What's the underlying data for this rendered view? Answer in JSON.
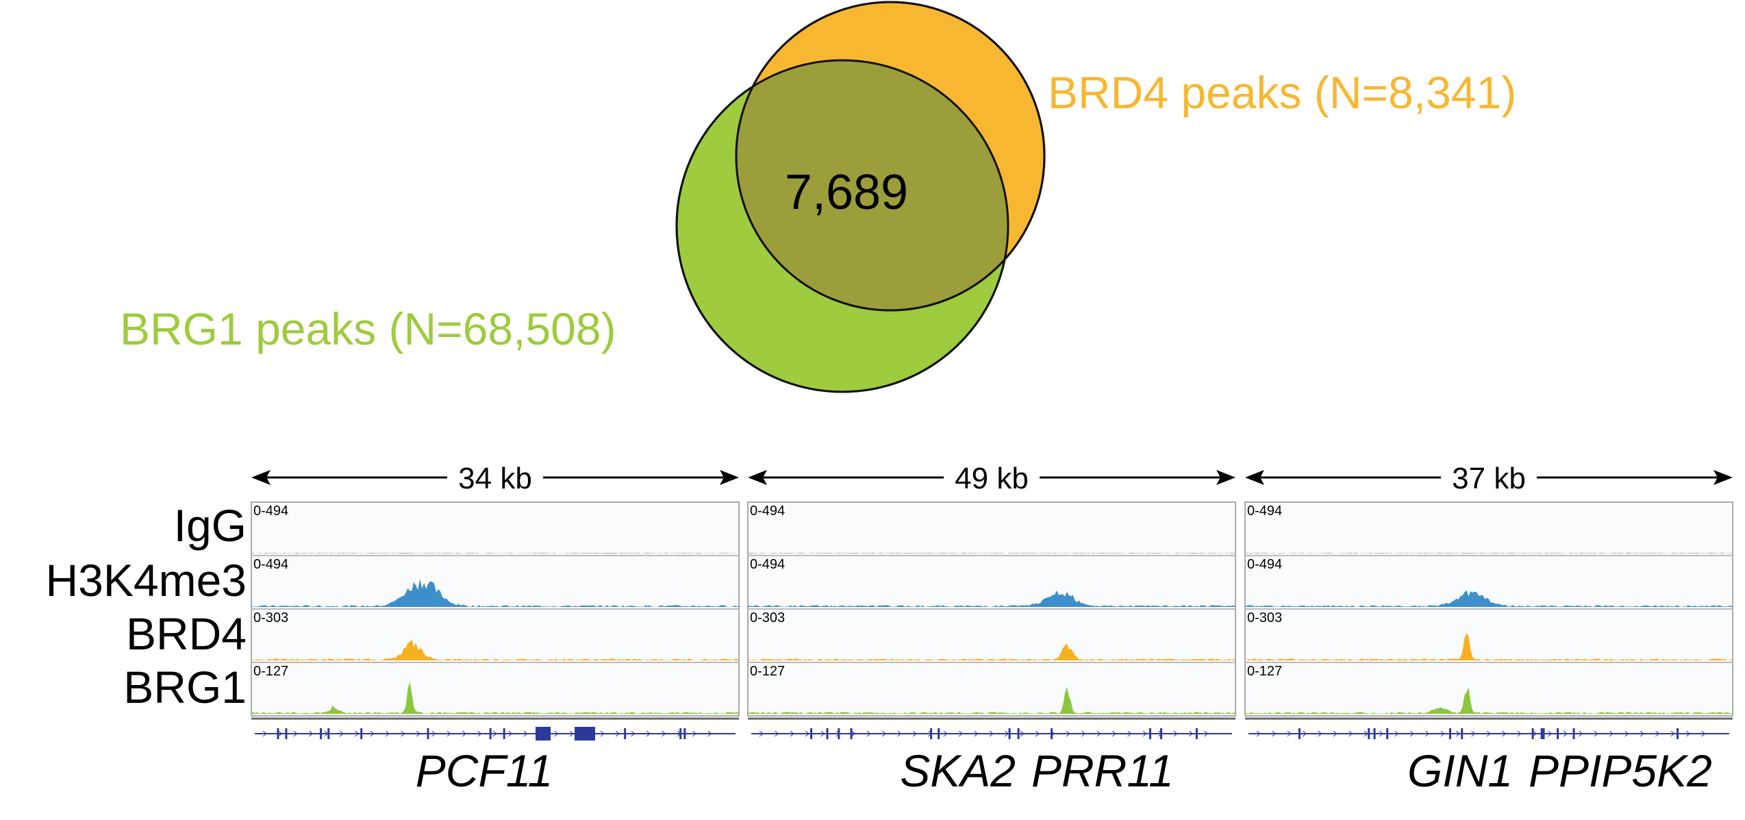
{
  "venn": {
    "set_a": {
      "label": "BRD4 peaks (N=8,341)",
      "color": "#f7b731"
    },
    "set_b": {
      "label": "BRG1 peaks (N=68,508)",
      "color": "#9fcb3f"
    },
    "overlap": {
      "label": "7,689",
      "color": "#9b9e3a"
    }
  },
  "track_labels": [
    "IgG",
    "H3K4me3",
    "BRD4",
    "BRG1"
  ],
  "track_colors": {
    "IgG": "#9aa3ad",
    "H3K4me3": "#3d8fcb",
    "BRD4": "#f7b020",
    "BRG1": "#8cc63f"
  },
  "gene_model_color": "#2e3a99",
  "panels": [
    {
      "scale_label": "34 kb",
      "ranges": [
        "0-494",
        "0-494",
        "0-303",
        "0-127"
      ],
      "genes": [
        "PCF11"
      ],
      "peaks": {
        "IgG": [],
        "H3K4me3": [
          {
            "pos": 0.35,
            "h": 0.85,
            "w": 0.07
          }
        ],
        "BRD4": [
          {
            "pos": 0.33,
            "h": 0.55,
            "w": 0.04
          }
        ],
        "BRG1": [
          {
            "pos": 0.325,
            "h": 0.95,
            "w": 0.012
          },
          {
            "pos": 0.17,
            "h": 0.2,
            "w": 0.02
          }
        ]
      }
    },
    {
      "scale_label": "49 kb",
      "ranges": [
        "0-494",
        "0-494",
        "0-303",
        "0-127"
      ],
      "genes": [
        "SKA2",
        "PRR11"
      ],
      "peaks": {
        "IgG": [],
        "H3K4me3": [
          {
            "pos": 0.64,
            "h": 0.48,
            "w": 0.06
          }
        ],
        "BRD4": [
          {
            "pos": 0.655,
            "h": 0.55,
            "w": 0.02
          }
        ],
        "BRG1": [
          {
            "pos": 0.655,
            "h": 0.88,
            "w": 0.012
          }
        ]
      }
    },
    {
      "scale_label": "37 kb",
      "ranges": [
        "0-494",
        "0-494",
        "0-303",
        "0-127"
      ],
      "genes": [
        "GIN1",
        "PPIP5K2"
      ],
      "peaks": {
        "IgG": [],
        "H3K4me3": [
          {
            "pos": 0.465,
            "h": 0.5,
            "w": 0.06
          }
        ],
        "BRD4": [
          {
            "pos": 0.455,
            "h": 0.95,
            "w": 0.012
          }
        ],
        "BRG1": [
          {
            "pos": 0.455,
            "h": 0.95,
            "w": 0.012
          },
          {
            "pos": 0.4,
            "h": 0.2,
            "w": 0.03
          }
        ]
      }
    }
  ]
}
